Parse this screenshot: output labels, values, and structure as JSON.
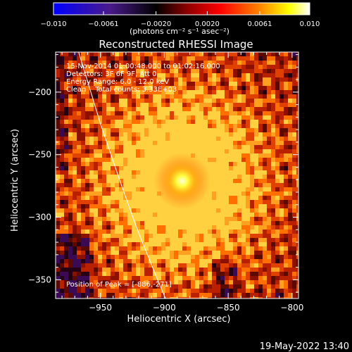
{
  "chart_data": {
    "type": "heatmap",
    "title": "Reconstructed RHESSI Image",
    "xlabel": "Heliocentric X (arcsec)",
    "ylabel": "Heliocentric Y (arcsec)",
    "xlim": [
      -985,
      -795
    ],
    "ylim": [
      -365,
      -168
    ],
    "x_ticks": [
      -950,
      -900,
      -850,
      -800
    ],
    "x_tick_labels": [
      "−950",
      "−900",
      "−850",
      "−800"
    ],
    "y_ticks": [
      -200,
      -250,
      -300,
      -350
    ],
    "y_tick_labels": [
      "−200",
      "−250",
      "−300",
      "−350"
    ],
    "colorbar": {
      "range": [
        -0.01,
        0.01
      ],
      "ticks": [
        -0.01,
        -0.0061,
        -0.002,
        0.002,
        0.0061,
        0.01
      ],
      "tick_labels": [
        "−0.010",
        "−0.0061",
        "−0.0020",
        "0.0020",
        "0.0061",
        "0.010"
      ],
      "unit_label": "(photons cm⁻² s⁻¹ asec⁻²)",
      "colors": [
        "#0000ff",
        "#000000",
        "#8b0000",
        "#ff0000",
        "#ff8000",
        "#ffff00",
        "#ffffff"
      ]
    },
    "annotations": [
      "15-Nov-2014 01:00:48.000 to 01:02:16.000",
      "Detectors: 3F 6F 9F, Att 0",
      "Energy Range: 6.0 - 12.0 keV",
      "Clean    Total counts: 3.33E+03"
    ],
    "peak_label": "Position of Peak = [-886,-271]",
    "peak": {
      "x": -886,
      "y": -271
    },
    "limb_points": [
      {
        "x": -967,
        "y": -168
      },
      {
        "x": -950,
        "y": -225
      },
      {
        "x": -935,
        "y": -270
      },
      {
        "x": -921,
        "y": -310
      },
      {
        "x": -906,
        "y": -348
      },
      {
        "x": -899,
        "y": -365
      }
    ],
    "grid": false,
    "legend": "none"
  },
  "footer": {
    "timestamp": "19-May-2022 13:40"
  }
}
